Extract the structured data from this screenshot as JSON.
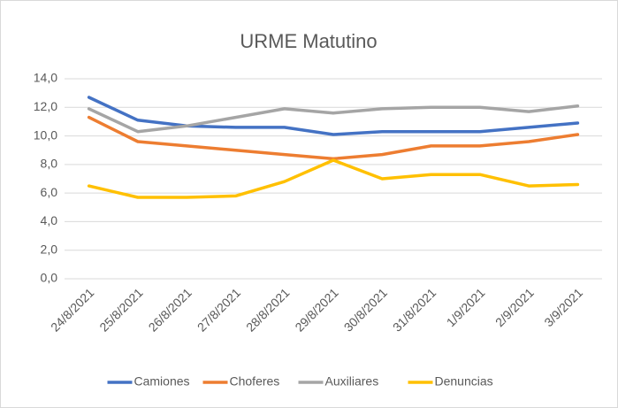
{
  "chart_data": {
    "type": "line",
    "title": "URME Matutino",
    "categories": [
      "24/8/2021",
      "25/8/2021",
      "26/8/2021",
      "27/8/2021",
      "28/8/2021",
      "29/8/2021",
      "30/8/2021",
      "31/8/2021",
      "1/9/2021",
      "2/9/2021",
      "3/9/2021"
    ],
    "series": [
      {
        "name": "Camiones",
        "color": "#4472c4",
        "values": [
          12.7,
          11.1,
          10.7,
          10.6,
          10.6,
          10.1,
          10.3,
          10.3,
          10.3,
          10.6,
          10.9
        ]
      },
      {
        "name": "Choferes",
        "color": "#ed7d31",
        "values": [
          11.3,
          9.6,
          9.3,
          9.0,
          8.7,
          8.4,
          8.7,
          9.3,
          9.3,
          9.6,
          10.1
        ]
      },
      {
        "name": "Auxiliares",
        "color": "#a5a5a5",
        "values": [
          11.9,
          10.3,
          10.7,
          11.3,
          11.9,
          11.6,
          11.9,
          12.0,
          12.0,
          11.7,
          12.1
        ]
      },
      {
        "name": "Denuncias",
        "color": "#ffc000",
        "values": [
          6.5,
          5.7,
          5.7,
          5.8,
          6.8,
          8.3,
          7.0,
          7.3,
          7.3,
          6.5,
          6.6
        ]
      }
    ],
    "ylim": [
      0,
      14
    ],
    "yticks": [
      {
        "value": 0,
        "label": "0,0"
      },
      {
        "value": 2,
        "label": "2,0"
      },
      {
        "value": 4,
        "label": "4,0"
      },
      {
        "value": 6,
        "label": "6,0"
      },
      {
        "value": 8,
        "label": "8,0"
      },
      {
        "value": 10,
        "label": "10,0"
      },
      {
        "value": 12,
        "label": "12,0"
      },
      {
        "value": 14,
        "label": "14,0"
      }
    ],
    "grid": true,
    "legend": "bottom"
  }
}
